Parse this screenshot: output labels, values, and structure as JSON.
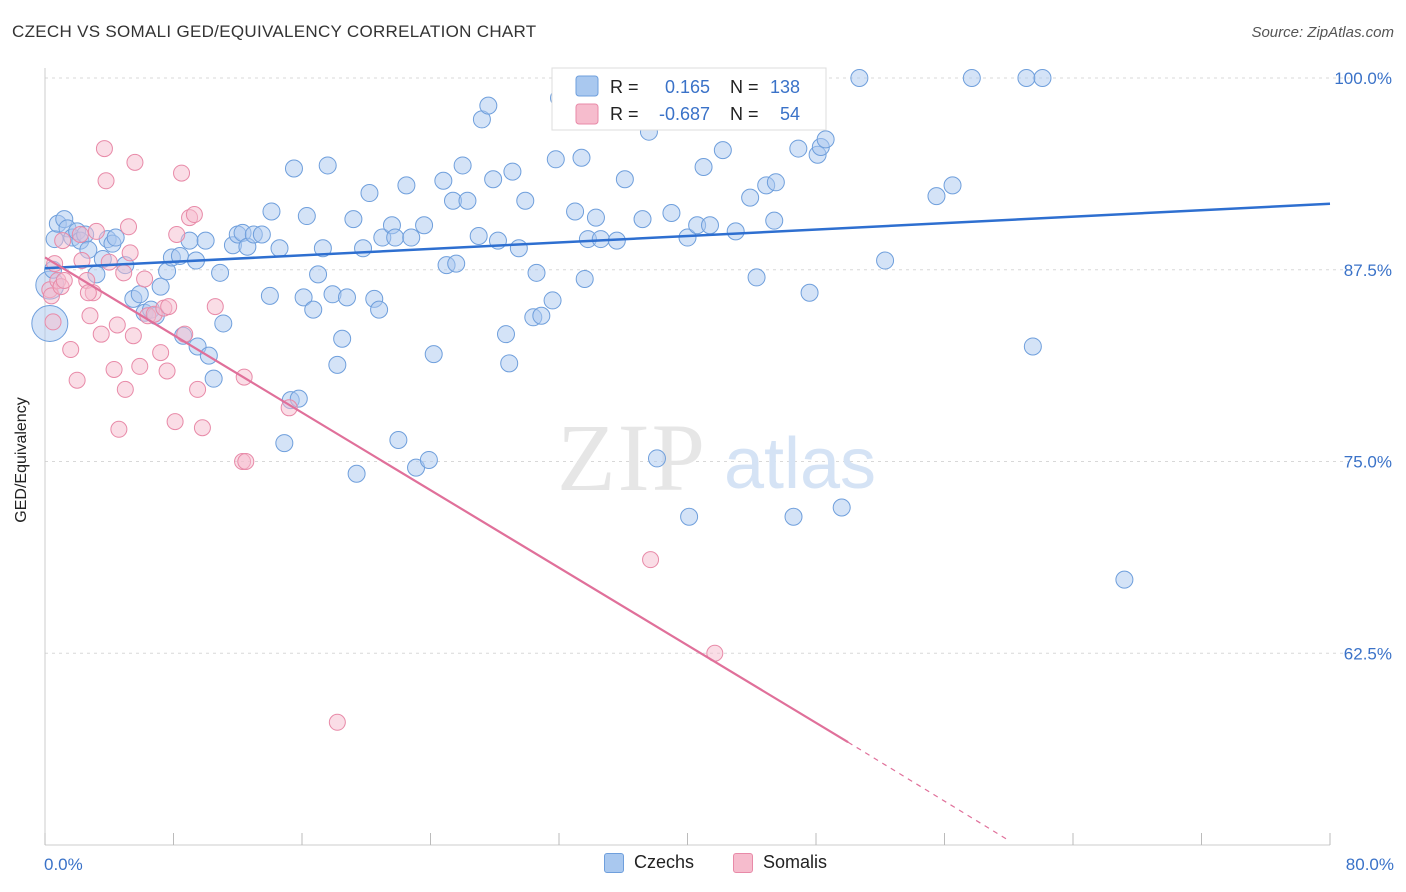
{
  "title": "CZECH VS SOMALI GED/EQUIVALENCY CORRELATION CHART",
  "source": "Source: ZipAtlas.com",
  "watermark": {
    "zip": "ZIP",
    "atlas": "atlas"
  },
  "colors": {
    "czech_fill": "#a9c8ef",
    "czech_stroke": "#6f9fdc",
    "czech_line": "#2e6fd0",
    "somali_fill": "#f6bccd",
    "somali_stroke": "#e88aa8",
    "somali_line": "#e0709a",
    "tick_text": "#3a72c8",
    "grid": "#d8d8d8"
  },
  "legend": {
    "rows": [
      {
        "r_label": "R =",
        "r_value": "0.165",
        "n_label": "N =",
        "n_value": "138"
      },
      {
        "r_label": "R =",
        "r_value": "-0.687",
        "n_label": "N =",
        "n_value": "54"
      }
    ]
  },
  "bottom_legend": {
    "czech": "Czechs",
    "somali": "Somalis"
  },
  "chart_data": {
    "type": "scatter",
    "title": "CZECH VS SOMALI GED/EQUIVALENCY CORRELATION CHART",
    "xlabel": "",
    "ylabel": "GED/Equivalency",
    "xlim": [
      0,
      80
    ],
    "ylim": [
      50,
      100
    ],
    "x_tick_labels": [
      "0.0%",
      "80.0%"
    ],
    "y_ticks": [
      62.5,
      75.0,
      87.5,
      100.0
    ],
    "y_tick_labels": [
      "62.5%",
      "75.0%",
      "87.5%",
      "100.0%"
    ],
    "grid": true,
    "legend_position": "top-center",
    "series": [
      {
        "name": "Czechs",
        "r": 0.165,
        "n": 138,
        "trend": {
          "x": [
            0,
            80
          ],
          "y": [
            87.6,
            91.8
          ]
        },
        "points": [
          [
            0.3,
            86.5
          ],
          [
            0.3,
            84.0
          ],
          [
            0.5,
            87.5
          ],
          [
            0.6,
            89.5
          ],
          [
            0.8,
            90.5
          ],
          [
            1.2,
            90.8
          ],
          [
            1.4,
            90.2
          ],
          [
            1.7,
            89.6
          ],
          [
            2.0,
            90.0
          ],
          [
            2.2,
            89.4
          ],
          [
            2.5,
            89.8
          ],
          [
            2.7,
            88.8
          ],
          [
            3.2,
            87.2
          ],
          [
            3.6,
            88.2
          ],
          [
            3.9,
            89.5
          ],
          [
            4.2,
            89.2
          ],
          [
            4.4,
            89.6
          ],
          [
            5.0,
            87.8
          ],
          [
            5.5,
            85.6
          ],
          [
            5.9,
            85.9
          ],
          [
            6.2,
            84.7
          ],
          [
            6.6,
            84.9
          ],
          [
            6.9,
            84.5
          ],
          [
            7.2,
            86.4
          ],
          [
            7.6,
            87.4
          ],
          [
            7.9,
            88.3
          ],
          [
            8.4,
            88.4
          ],
          [
            8.6,
            83.2
          ],
          [
            9.0,
            89.4
          ],
          [
            9.4,
            88.1
          ],
          [
            9.5,
            82.5
          ],
          [
            10.0,
            89.4
          ],
          [
            10.2,
            81.9
          ],
          [
            10.5,
            80.4
          ],
          [
            10.9,
            87.3
          ],
          [
            11.1,
            84.0
          ],
          [
            11.7,
            89.1
          ],
          [
            12.0,
            89.8
          ],
          [
            12.3,
            89.9
          ],
          [
            12.6,
            89.0
          ],
          [
            13.0,
            89.8
          ],
          [
            13.5,
            89.8
          ],
          [
            14.0,
            85.8
          ],
          [
            14.1,
            91.3
          ],
          [
            14.6,
            88.9
          ],
          [
            14.9,
            76.2
          ],
          [
            15.3,
            79.0
          ],
          [
            15.5,
            94.1
          ],
          [
            15.8,
            79.1
          ],
          [
            16.1,
            85.7
          ],
          [
            16.3,
            91.0
          ],
          [
            16.7,
            84.9
          ],
          [
            17.0,
            87.2
          ],
          [
            17.3,
            88.9
          ],
          [
            17.6,
            94.3
          ],
          [
            17.9,
            85.9
          ],
          [
            18.2,
            81.3
          ],
          [
            18.5,
            83.0
          ],
          [
            18.8,
            85.7
          ],
          [
            19.2,
            90.8
          ],
          [
            19.4,
            74.2
          ],
          [
            19.8,
            88.9
          ],
          [
            20.2,
            92.5
          ],
          [
            20.5,
            85.6
          ],
          [
            20.8,
            84.9
          ],
          [
            21.0,
            89.6
          ],
          [
            21.6,
            90.4
          ],
          [
            21.8,
            89.6
          ],
          [
            22.0,
            76.4
          ],
          [
            22.5,
            93.0
          ],
          [
            22.8,
            89.6
          ],
          [
            23.1,
            74.6
          ],
          [
            23.6,
            90.4
          ],
          [
            23.9,
            75.1
          ],
          [
            24.2,
            82.0
          ],
          [
            24.8,
            93.3
          ],
          [
            25.0,
            87.8
          ],
          [
            25.4,
            92.0
          ],
          [
            25.6,
            87.9
          ],
          [
            26.0,
            94.3
          ],
          [
            26.3,
            92.0
          ],
          [
            27.0,
            89.7
          ],
          [
            27.2,
            97.3
          ],
          [
            27.6,
            98.2
          ],
          [
            27.9,
            93.4
          ],
          [
            28.2,
            89.4
          ],
          [
            28.7,
            83.3
          ],
          [
            28.9,
            81.4
          ],
          [
            29.1,
            93.9
          ],
          [
            29.5,
            88.9
          ],
          [
            29.9,
            92.0
          ],
          [
            30.4,
            84.4
          ],
          [
            30.6,
            87.3
          ],
          [
            30.9,
            84.5
          ],
          [
            31.6,
            85.5
          ],
          [
            31.8,
            94.7
          ],
          [
            32.0,
            98.7
          ],
          [
            33.0,
            91.3
          ],
          [
            33.4,
            94.8
          ],
          [
            33.6,
            86.9
          ],
          [
            33.8,
            89.5
          ],
          [
            34.3,
            90.9
          ],
          [
            34.6,
            89.5
          ],
          [
            35.6,
            89.4
          ],
          [
            36.1,
            93.4
          ],
          [
            36.7,
            100.0
          ],
          [
            37.2,
            90.8
          ],
          [
            37.6,
            96.5
          ],
          [
            38.1,
            75.2
          ],
          [
            39.0,
            91.2
          ],
          [
            40.0,
            89.6
          ],
          [
            40.1,
            71.4
          ],
          [
            40.6,
            90.4
          ],
          [
            41.0,
            94.2
          ],
          [
            41.4,
            90.4
          ],
          [
            42.2,
            95.3
          ],
          [
            43.0,
            90.0
          ],
          [
            43.9,
            92.2
          ],
          [
            44.3,
            87.0
          ],
          [
            44.9,
            93.0
          ],
          [
            45.4,
            90.7
          ],
          [
            45.5,
            93.2
          ],
          [
            46.6,
            71.4
          ],
          [
            46.9,
            95.4
          ],
          [
            47.6,
            86.0
          ],
          [
            48.1,
            95.0
          ],
          [
            48.3,
            95.5
          ],
          [
            48.6,
            96.0
          ],
          [
            49.6,
            72.0
          ],
          [
            50.7,
            100.0
          ],
          [
            52.3,
            88.1
          ],
          [
            55.5,
            92.3
          ],
          [
            56.5,
            93.0
          ],
          [
            57.7,
            100.0
          ],
          [
            61.1,
            100.0
          ],
          [
            61.5,
            82.5
          ],
          [
            62.1,
            100.0
          ],
          [
            67.2,
            67.3
          ]
        ]
      },
      {
        "name": "Somalis",
        "r": -0.687,
        "n": 54,
        "trend": {
          "x": [
            0,
            50
          ],
          "y": [
            88.3,
            56.7
          ]
        },
        "trend_dashed": {
          "x": [
            50,
            60
          ],
          "y": [
            56.7,
            50.3
          ]
        },
        "points": [
          [
            0.3,
            86.2
          ],
          [
            0.4,
            85.8
          ],
          [
            0.5,
            84.1
          ],
          [
            0.6,
            87.9
          ],
          [
            0.8,
            86.8
          ],
          [
            1.0,
            86.4
          ],
          [
            1.1,
            89.4
          ],
          [
            1.2,
            86.8
          ],
          [
            1.6,
            82.3
          ],
          [
            2.0,
            80.3
          ],
          [
            2.2,
            89.8
          ],
          [
            2.3,
            88.1
          ],
          [
            2.6,
            86.8
          ],
          [
            2.8,
            84.5
          ],
          [
            3.0,
            86.0
          ],
          [
            3.2,
            90.0
          ],
          [
            3.5,
            83.3
          ],
          [
            3.7,
            95.4
          ],
          [
            3.8,
            93.3
          ],
          [
            4.0,
            88.0
          ],
          [
            4.3,
            81.0
          ],
          [
            4.5,
            83.9
          ],
          [
            4.6,
            77.1
          ],
          [
            4.9,
            87.3
          ],
          [
            5.0,
            79.7
          ],
          [
            5.2,
            90.3
          ],
          [
            5.3,
            88.6
          ],
          [
            5.5,
            83.2
          ],
          [
            5.9,
            81.2
          ],
          [
            5.6,
            94.5
          ],
          [
            6.2,
            86.9
          ],
          [
            6.4,
            84.5
          ],
          [
            6.8,
            84.6
          ],
          [
            7.2,
            82.1
          ],
          [
            7.4,
            85.0
          ],
          [
            7.6,
            80.9
          ],
          [
            7.7,
            85.1
          ],
          [
            8.1,
            77.6
          ],
          [
            8.2,
            89.8
          ],
          [
            8.5,
            93.8
          ],
          [
            8.7,
            83.3
          ],
          [
            9.0,
            90.9
          ],
          [
            9.3,
            91.1
          ],
          [
            9.5,
            79.7
          ],
          [
            9.8,
            77.2
          ],
          [
            10.6,
            85.1
          ],
          [
            12.4,
            80.5
          ],
          [
            12.3,
            75.0
          ],
          [
            12.5,
            75.0
          ],
          [
            15.2,
            78.5
          ],
          [
            18.2,
            58.0
          ],
          [
            37.7,
            68.6
          ],
          [
            41.7,
            62.5
          ],
          [
            2.7,
            86.0
          ]
        ]
      }
    ]
  }
}
